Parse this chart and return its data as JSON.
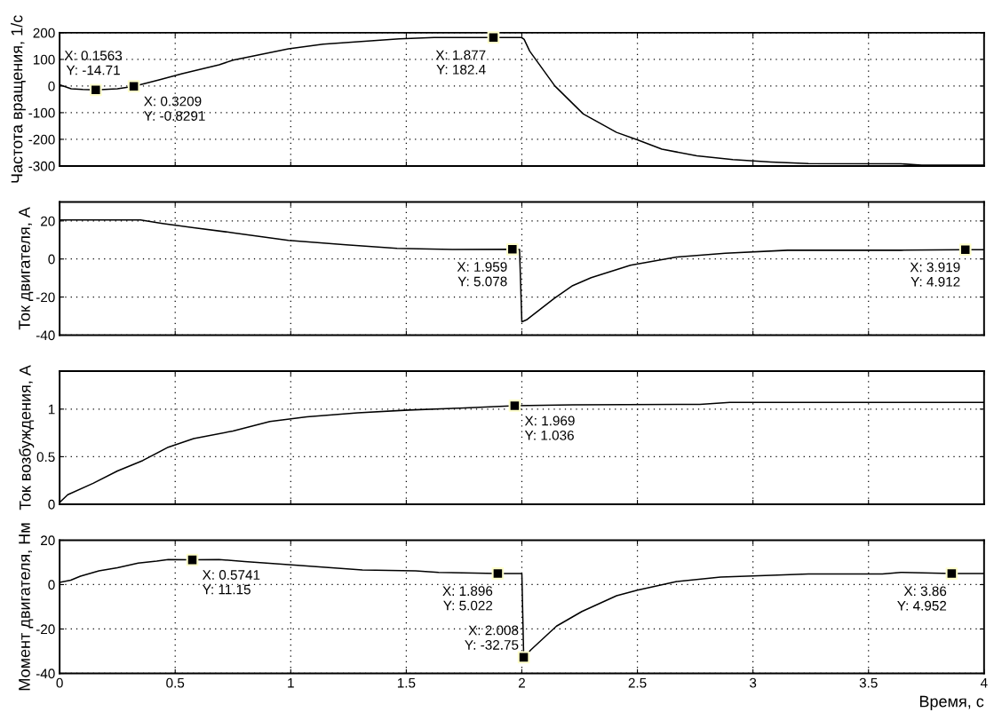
{
  "chart_data": [
    {
      "type": "line",
      "ylabel": "Частота вращения, 1/с",
      "xlim": [
        0,
        4
      ],
      "xticks": [
        0,
        0.5,
        1,
        1.5,
        2,
        2.5,
        3,
        3.5,
        4
      ],
      "ylim": [
        -300,
        200
      ],
      "yticks": [
        -300,
        -200,
        -100,
        0,
        100,
        200
      ],
      "grid": true,
      "tick_labels": "y",
      "series": [
        {
          "color": "#000000",
          "x": [
            0,
            0.05,
            0.1,
            0.1563,
            0.25,
            0.3209,
            0.43,
            0.53,
            0.69,
            0.75,
            0.99,
            1.14,
            1.47,
            1.62,
            1.877,
            2.0,
            2.01,
            2.034,
            2.143,
            2.266,
            2.41,
            2.5,
            2.606,
            2.757,
            2.913,
            3.077,
            3.24,
            3.64,
            3.73,
            4.0
          ],
          "values": [
            5,
            -10,
            -13,
            -14.71,
            -10,
            -0.8291,
            23,
            46,
            80,
            97,
            140,
            157,
            177,
            182,
            182.4,
            182,
            175,
            131,
            0,
            -105,
            -174,
            -202,
            -237,
            -262,
            -276,
            -285,
            -291,
            -292,
            -297,
            -297
          ]
        },
        {
          "type": "scatter",
          "marker": "square",
          "color": "#000000",
          "x": [
            0.1563,
            0.3209,
            1.877
          ],
          "values": [
            -14.71,
            -0.8291,
            182.4
          ]
        }
      ],
      "annotations": [
        {
          "text": "X: 0.1563\nY: -14.71",
          "x": 0.1563,
          "y": -14.71
        },
        {
          "text": "X: 0.3209\nY: -0.8291",
          "x": 0.3209,
          "y": -0.8291
        },
        {
          "text": "X: 1.877\nY: 182.4",
          "x": 1.877,
          "y": 182.4
        }
      ]
    },
    {
      "type": "line",
      "ylabel": "Ток двигателя, А",
      "xlim": [
        0,
        4
      ],
      "xticks": [
        0,
        0.5,
        1,
        1.5,
        2,
        2.5,
        3,
        3.5,
        4
      ],
      "ylim": [
        -40,
        30
      ],
      "yticks": [
        -40,
        -20,
        0,
        20
      ],
      "grid": true,
      "tick_labels": "y",
      "series": [
        {
          "color": "#000000",
          "x": [
            0,
            0.35,
            0.445,
            0.58,
            0.75,
            0.99,
            1.24,
            1.46,
            1.7,
            1.959,
            1.99,
            2.0,
            2.02,
            2.14,
            2.22,
            2.3,
            2.47,
            2.67,
            2.88,
            3.15,
            3.64,
            3.919,
            4.0
          ],
          "values": [
            20.5,
            20.5,
            18.7,
            16.4,
            13.8,
            9.8,
            7.5,
            5.6,
            5,
            5.078,
            5,
            -33,
            -32,
            -20.7,
            -14,
            -9.8,
            -3.3,
            1,
            3,
            4.6,
            4.6,
            4.912,
            4.9
          ]
        },
        {
          "type": "scatter",
          "marker": "square",
          "color": "#000000",
          "x": [
            1.959,
            3.919
          ],
          "values": [
            5.078,
            4.912
          ]
        }
      ],
      "annotations": [
        {
          "text": "X: 1.959\nY: 5.078",
          "x": 1.959,
          "y": 5.078
        },
        {
          "text": "X: 3.919\nY: 4.912",
          "x": 3.919,
          "y": 4.912
        }
      ]
    },
    {
      "type": "line",
      "ylabel": "Ток возбуждения, А",
      "xlim": [
        0,
        4
      ],
      "xticks": [
        0,
        0.5,
        1,
        1.5,
        2,
        2.5,
        3,
        3.5,
        4
      ],
      "ylim": [
        0,
        1.4
      ],
      "yticks": [
        0,
        0.5,
        1
      ],
      "grid": true,
      "tick_labels": "y",
      "series": [
        {
          "color": "#000000",
          "x": [
            0,
            0.035,
            0.145,
            0.25,
            0.36,
            0.47,
            0.58,
            0.75,
            0.91,
            1.07,
            1.29,
            1.51,
            1.73,
            1.969,
            2.22,
            2.77,
            2.9,
            4.0
          ],
          "values": [
            0.02,
            0.1,
            0.22,
            0.35,
            0.46,
            0.6,
            0.69,
            0.77,
            0.87,
            0.92,
            0.96,
            0.99,
            1.01,
            1.036,
            1.045,
            1.05,
            1.07,
            1.07
          ]
        },
        {
          "type": "scatter",
          "marker": "square",
          "color": "#000000",
          "x": [
            1.969
          ],
          "values": [
            1.036
          ]
        }
      ],
      "annotations": [
        {
          "text": "X: 1.969\nY: 1.036",
          "x": 1.969,
          "y": 1.036
        }
      ]
    },
    {
      "type": "line",
      "ylabel": "Момент двигателя, Нм",
      "xlabel": "Время, с",
      "xlim": [
        0,
        4
      ],
      "xticks": [
        0,
        0.5,
        1,
        1.5,
        2,
        2.5,
        3,
        3.5,
        4
      ],
      "ylim": [
        -40,
        20
      ],
      "yticks": [
        -40,
        -20,
        0,
        20
      ],
      "grid": true,
      "series": [
        {
          "color": "#000000",
          "x": [
            0,
            0.048,
            0.09,
            0.17,
            0.25,
            0.34,
            0.42,
            0.47,
            0.5741,
            0.69,
            0.8,
            0.99,
            1.31,
            1.54,
            1.64,
            1.896,
            2.0,
            2.008,
            2.04,
            2.15,
            2.26,
            2.41,
            2.5,
            2.67,
            2.86,
            3.08,
            3.24,
            3.56,
            3.64,
            3.86,
            4.0
          ],
          "values": [
            1,
            2,
            3.8,
            6.2,
            7.6,
            9.7,
            10.6,
            11.3,
            11.15,
            11.3,
            10.4,
            9,
            6.6,
            6.2,
            5.5,
            5.022,
            5.0,
            -32.75,
            -29.3,
            -18.7,
            -12.1,
            -5,
            -2.5,
            1.4,
            3.4,
            4.2,
            4.8,
            4.8,
            5.5,
            4.952,
            4.95
          ]
        },
        {
          "type": "scatter",
          "marker": "square",
          "color": "#000000",
          "x": [
            0.5741,
            1.896,
            2.008,
            3.86
          ],
          "values": [
            11.15,
            5.022,
            -32.75,
            4.952
          ]
        }
      ],
      "annotations": [
        {
          "text": "X: 0.5741\nY: 11.15",
          "x": 0.5741,
          "y": 11.15
        },
        {
          "text": "X: 1.896\nY: 5.022",
          "x": 1.896,
          "y": 5.022
        },
        {
          "text": "X: 2.008\nY: -32.75",
          "x": 2.008,
          "y": -32.75
        },
        {
          "text": "X: 3.86\nY: 4.952",
          "x": 3.86,
          "y": 4.952
        }
      ]
    }
  ]
}
